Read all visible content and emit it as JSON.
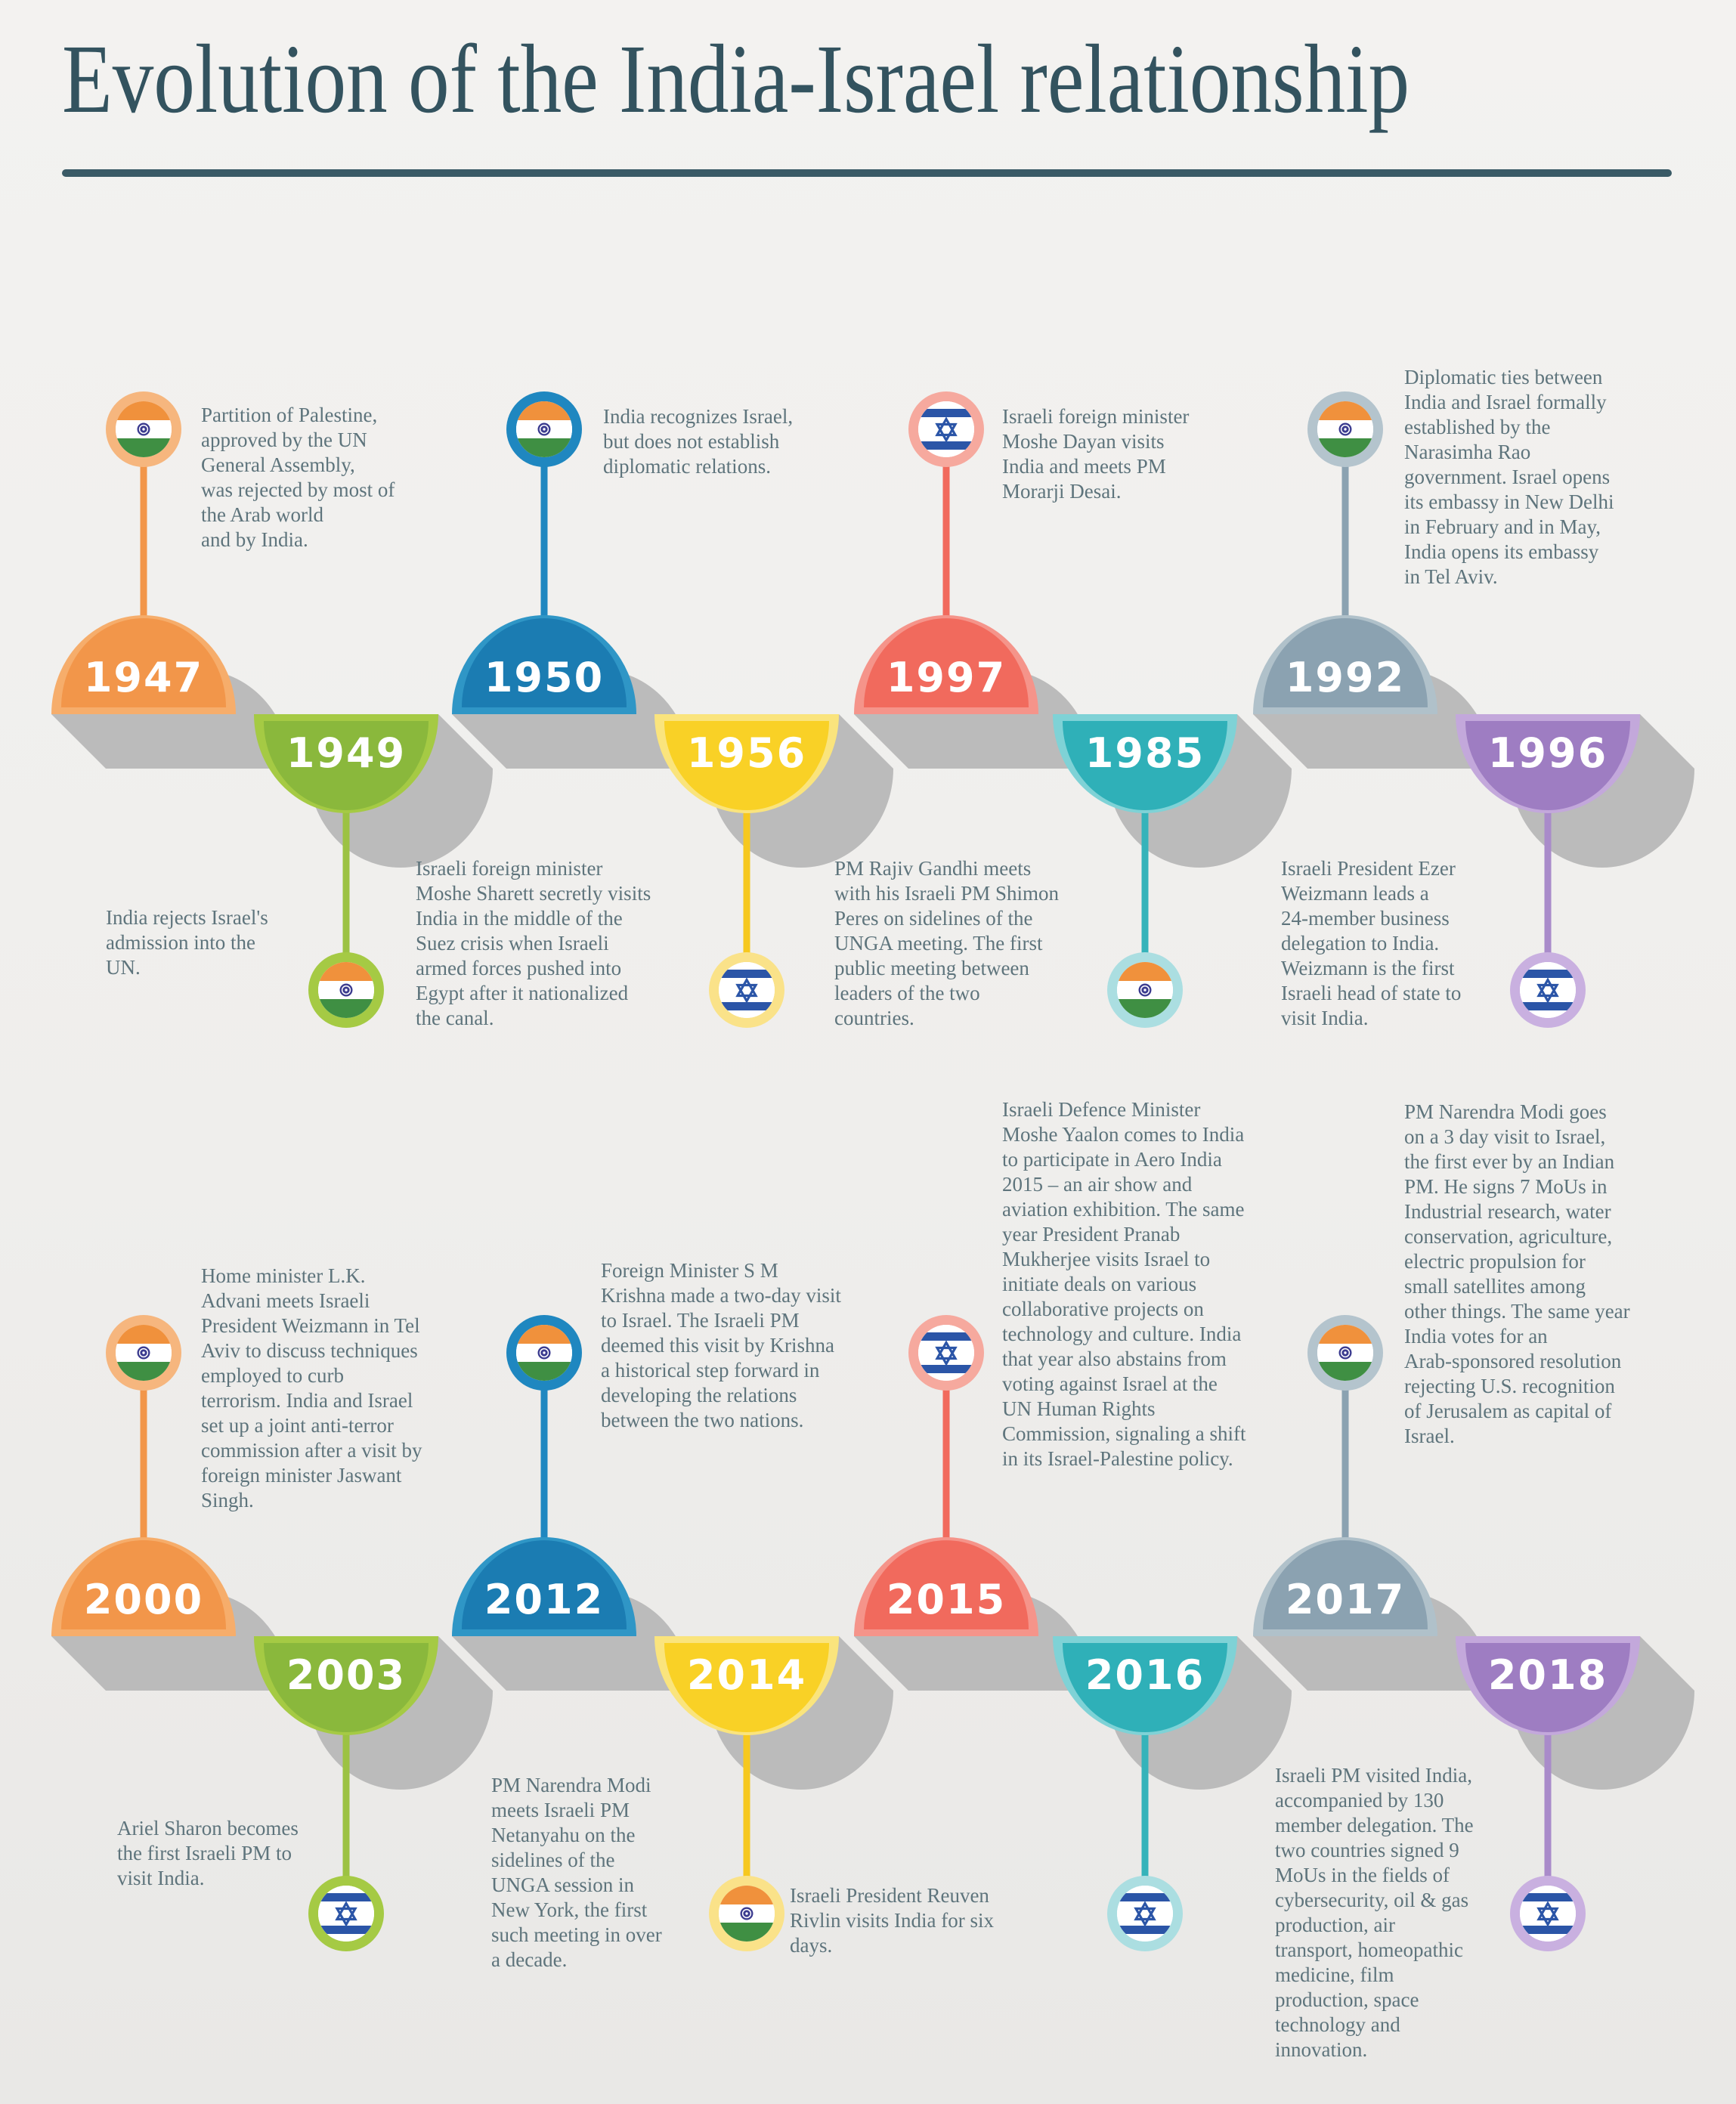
{
  "title": "Evolution of the India-Israel relationship",
  "style": {
    "background": "#f0efed",
    "title_color": "#33535f",
    "rule_color": "#3a5a66",
    "body_text_color": "#5e747c",
    "shadow_color": "#bbbbbb",
    "year_text_color": "#ffffff"
  },
  "palettes": {
    "orange": {
      "rim": "#f6ad6b",
      "main": "#f2964a",
      "ring": "#f6b67e",
      "stem": "#f2964a"
    },
    "green": {
      "rim": "#a5ca44",
      "main": "#8ab83c",
      "ring": "#a5ca44",
      "stem": "#9cc243"
    },
    "blue": {
      "rim": "#2f96c6",
      "main": "#1b7cb2",
      "ring": "#1f87c0",
      "stem": "#1f87c0"
    },
    "yellow": {
      "rim": "#fae47d",
      "main": "#f9d126",
      "ring": "#fae289",
      "stem": "#f6c81f"
    },
    "coral": {
      "rim": "#f5948a",
      "main": "#f16a5d",
      "ring": "#f6a99e",
      "stem": "#f16a5d"
    },
    "teal": {
      "rim": "#7fd2d6",
      "main": "#2fb0b8",
      "ring": "#abdee1",
      "stem": "#35b3ba"
    },
    "slate": {
      "rim": "#b0c1ca",
      "main": "#8ba2b1",
      "ring": "#b4c4cd",
      "stem": "#8ba2b1"
    },
    "purple": {
      "rim": "#c3a8db",
      "main": "#9e7dc2",
      "ring": "#c9b0e0",
      "stem": "#a98bca"
    }
  },
  "flag_colors": {
    "india_saffron": "#f0913c",
    "india_green": "#3f8f43",
    "india_chakra": "#3b3b8f",
    "israel_blue": "#2b55a7",
    "white": "#ffffff"
  },
  "rows": [
    {
      "name": "timeline-row-1947-1996",
      "items": [
        {
          "year": "1947",
          "flag": "india",
          "position": "up",
          "palette": "orange",
          "text": "Partition of Palestine,\napproved by the UN\nGeneral Assembly,\nwas rejected by most of\nthe Arab world\nand by India."
        },
        {
          "year": "1949",
          "flag": "india",
          "position": "down",
          "palette": "green",
          "text": "India rejects Israel's\nadmission into the\nUN."
        },
        {
          "year": "1950",
          "flag": "india",
          "position": "up",
          "palette": "blue",
          "text": "India recognizes Israel,\nbut does not establish\ndiplomatic relations."
        },
        {
          "year": "1956",
          "flag": "israel",
          "position": "down",
          "palette": "yellow",
          "text": "Israeli foreign minister\nMoshe Sharett secretly visits\nIndia in the middle of the\nSuez crisis when Israeli\narmed forces pushed into\nEgypt after it nationalized\nthe canal."
        },
        {
          "year": "1997",
          "flag": "israel",
          "position": "up",
          "palette": "coral",
          "text": "Israeli foreign minister\nMoshe Dayan visits\nIndia and meets PM\nMorarji Desai."
        },
        {
          "year": "1985",
          "flag": "india",
          "position": "down",
          "palette": "teal",
          "text": "PM Rajiv Gandhi meets\nwith his Israeli PM Shimon\nPeres on sidelines of the\nUNGA meeting. The first\npublic meeting between\nleaders of the two\ncountries."
        },
        {
          "year": "1992",
          "flag": "india",
          "position": "up",
          "palette": "slate",
          "text": "Diplomatic ties between\nIndia and Israel formally\nestablished by the\nNarasimha Rao\ngovernment. Israel opens\nits embassy in New Delhi\nin February and in May,\nIndia opens its embassy\nin Tel Aviv."
        },
        {
          "year": "1996",
          "flag": "israel",
          "position": "down",
          "palette": "purple",
          "text": "Israeli President Ezer\nWeizmann leads a\n24-member business\ndelegation to India.\nWeizmann is the first\nIsraeli head of state to\nvisit India."
        }
      ]
    },
    {
      "name": "timeline-row-2000-2018",
      "items": [
        {
          "year": "2000",
          "flag": "india",
          "position": "up",
          "palette": "orange",
          "text": "Home minister L.K.\nAdvani meets Israeli\nPresident Weizmann in Tel\nAviv to discuss techniques\nemployed to curb\nterrorism. India and Israel\nset up a joint anti-terror\ncommission after a visit by\nforeign minister Jaswant\nSingh."
        },
        {
          "year": "2003",
          "flag": "israel",
          "position": "down",
          "palette": "green",
          "text": "Ariel Sharon becomes\nthe first Israeli PM to\nvisit India."
        },
        {
          "year": "2012",
          "flag": "india",
          "position": "up",
          "palette": "blue",
          "text": "Foreign Minister S M\nKrishna made a two-day visit\nto Israel. The Israeli PM\ndeemed this visit by Krishna\na historical step forward in\ndeveloping the relations\nbetween the two nations."
        },
        {
          "year": "2014",
          "flag": "india",
          "position": "down",
          "palette": "yellow",
          "text": "PM Narendra Modi\nmeets Israeli PM\nNetanyahu on the\nsidelines of the\nUNGA session in\nNew York, the first\nsuch meeting in over\na decade."
        },
        {
          "year": "2015",
          "flag": "israel",
          "position": "up",
          "palette": "coral",
          "text": "Israeli Defence Minister\nMoshe Yaalon comes to India\nto participate in Aero India\n2015 – an air show and\naviation exhibition. The same\nyear President Pranab\nMukherjee visits Israel to\ninitiate deals on various\ncollaborative projects on\ntechnology and culture. India\nthat year also abstains from\nvoting against Israel at the\nUN Human Rights\nCommission, signaling a shift\nin its Israel-Palestine policy."
        },
        {
          "year": "2016",
          "flag": "israel",
          "position": "down",
          "palette": "teal",
          "text": "Israeli President Reuven\nRivlin visits India for six\ndays."
        },
        {
          "year": "2017",
          "flag": "india",
          "position": "up",
          "palette": "slate",
          "text": "PM Narendra Modi goes\non a 3 day visit to Israel,\nthe first ever by an Indian\nPM. He signs 7 MoUs in\nIndustrial research, water\nconservation, agriculture,\nelectric propulsion for\nsmall satellites among\nother things. The same year\nIndia votes for an\nArab-sponsored resolution\nrejecting U.S. recognition\nof Jerusalem as capital of\nIsrael."
        },
        {
          "year": "2018",
          "flag": "israel",
          "position": "down",
          "palette": "purple",
          "text": "Israeli PM visited India,\naccompanied by 130\nmember delegation. The\ntwo countries signed 9\nMoUs in the fields of\ncybersecurity, oil & gas\nproduction, air\ntransport, homeopathic\nmedicine, film\nproduction, space\ntechnology and\ninnovation."
        }
      ]
    }
  ]
}
